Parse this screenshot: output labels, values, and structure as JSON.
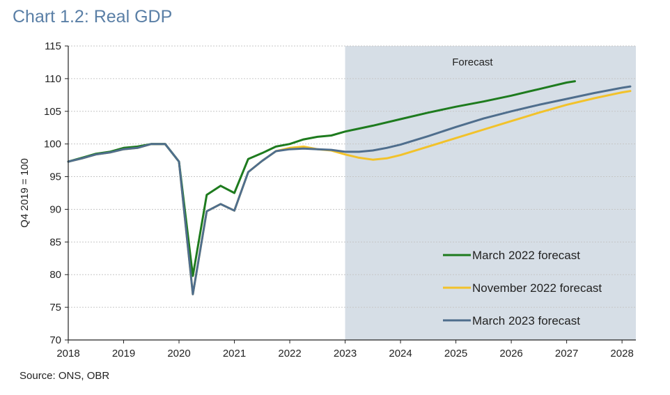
{
  "title": "Chart 1.2: Real GDP",
  "source": "Source: ONS, OBR",
  "chart_data": {
    "type": "line",
    "title": "Chart 1.2: Real GDP",
    "xlabel": "",
    "ylabel": "Q4 2019 = 100",
    "xlim": [
      2018,
      2028.25
    ],
    "ylim": [
      70,
      115
    ],
    "xticks": [
      2018,
      2019,
      2020,
      2021,
      2022,
      2023,
      2024,
      2025,
      2026,
      2027,
      2028
    ],
    "yticks": [
      70,
      75,
      80,
      85,
      90,
      95,
      100,
      105,
      110,
      115
    ],
    "grid": true,
    "legend_position": "bottom-right",
    "forecast_region": {
      "label": "Forecast",
      "from": 2023,
      "to": 2028.25,
      "color": "#d6dee6"
    },
    "series": [
      {
        "name": "March 2022 forecast",
        "color": "#1e7b1e",
        "x": [
          2018,
          2018.25,
          2018.5,
          2018.75,
          2019,
          2019.25,
          2019.5,
          2019.75,
          2020,
          2020.25,
          2020.5,
          2020.75,
          2021,
          2021.25,
          2021.5,
          2021.75,
          2022,
          2022.25,
          2022.5,
          2022.75,
          2023,
          2023.5,
          2024,
          2024.5,
          2025,
          2025.5,
          2026,
          2026.5,
          2027,
          2027.15
        ],
        "y": [
          97.3,
          97.9,
          98.5,
          98.8,
          99.4,
          99.6,
          100.0,
          100.0,
          97.3,
          79.8,
          92.2,
          93.6,
          92.5,
          97.7,
          98.6,
          99.6,
          100.0,
          100.7,
          101.1,
          101.3,
          101.9,
          102.8,
          103.8,
          104.8,
          105.7,
          106.5,
          107.4,
          108.4,
          109.4,
          109.6
        ]
      },
      {
        "name": "November 2022 forecast",
        "color": "#f2c22a",
        "x": [
          2018,
          2018.25,
          2018.5,
          2018.75,
          2019,
          2019.25,
          2019.5,
          2019.75,
          2020,
          2020.25,
          2020.5,
          2020.75,
          2021,
          2021.25,
          2021.5,
          2021.75,
          2022,
          2022.25,
          2022.5,
          2022.75,
          2023,
          2023.25,
          2023.5,
          2023.75,
          2024,
          2024.5,
          2025,
          2025.5,
          2026,
          2026.5,
          2027,
          2027.5,
          2028,
          2028.15
        ],
        "y": [
          97.3,
          97.8,
          98.4,
          98.7,
          99.2,
          99.4,
          100.0,
          100.0,
          97.3,
          77.0,
          89.7,
          90.8,
          89.8,
          95.7,
          97.4,
          98.9,
          99.4,
          99.6,
          99.2,
          99.0,
          98.4,
          97.9,
          97.6,
          97.8,
          98.3,
          99.6,
          100.9,
          102.2,
          103.5,
          104.8,
          106.0,
          107.0,
          107.9,
          108.1
        ]
      },
      {
        "name": "March 2023 forecast",
        "color": "#4f6e8d",
        "x": [
          2018,
          2018.25,
          2018.5,
          2018.75,
          2019,
          2019.25,
          2019.5,
          2019.75,
          2020,
          2020.25,
          2020.5,
          2020.75,
          2021,
          2021.25,
          2021.5,
          2021.75,
          2022,
          2022.25,
          2022.5,
          2022.75,
          2023,
          2023.25,
          2023.5,
          2023.75,
          2024,
          2024.5,
          2025,
          2025.5,
          2026,
          2026.5,
          2027,
          2027.5,
          2028,
          2028.15
        ],
        "y": [
          97.3,
          97.8,
          98.4,
          98.7,
          99.2,
          99.4,
          100.0,
          100.0,
          97.3,
          77.0,
          89.7,
          90.8,
          89.8,
          95.7,
          97.4,
          98.9,
          99.2,
          99.3,
          99.2,
          99.1,
          98.8,
          98.8,
          99.0,
          99.4,
          99.9,
          101.2,
          102.6,
          103.9,
          105.0,
          106.0,
          106.9,
          107.8,
          108.6,
          108.8
        ]
      }
    ]
  }
}
